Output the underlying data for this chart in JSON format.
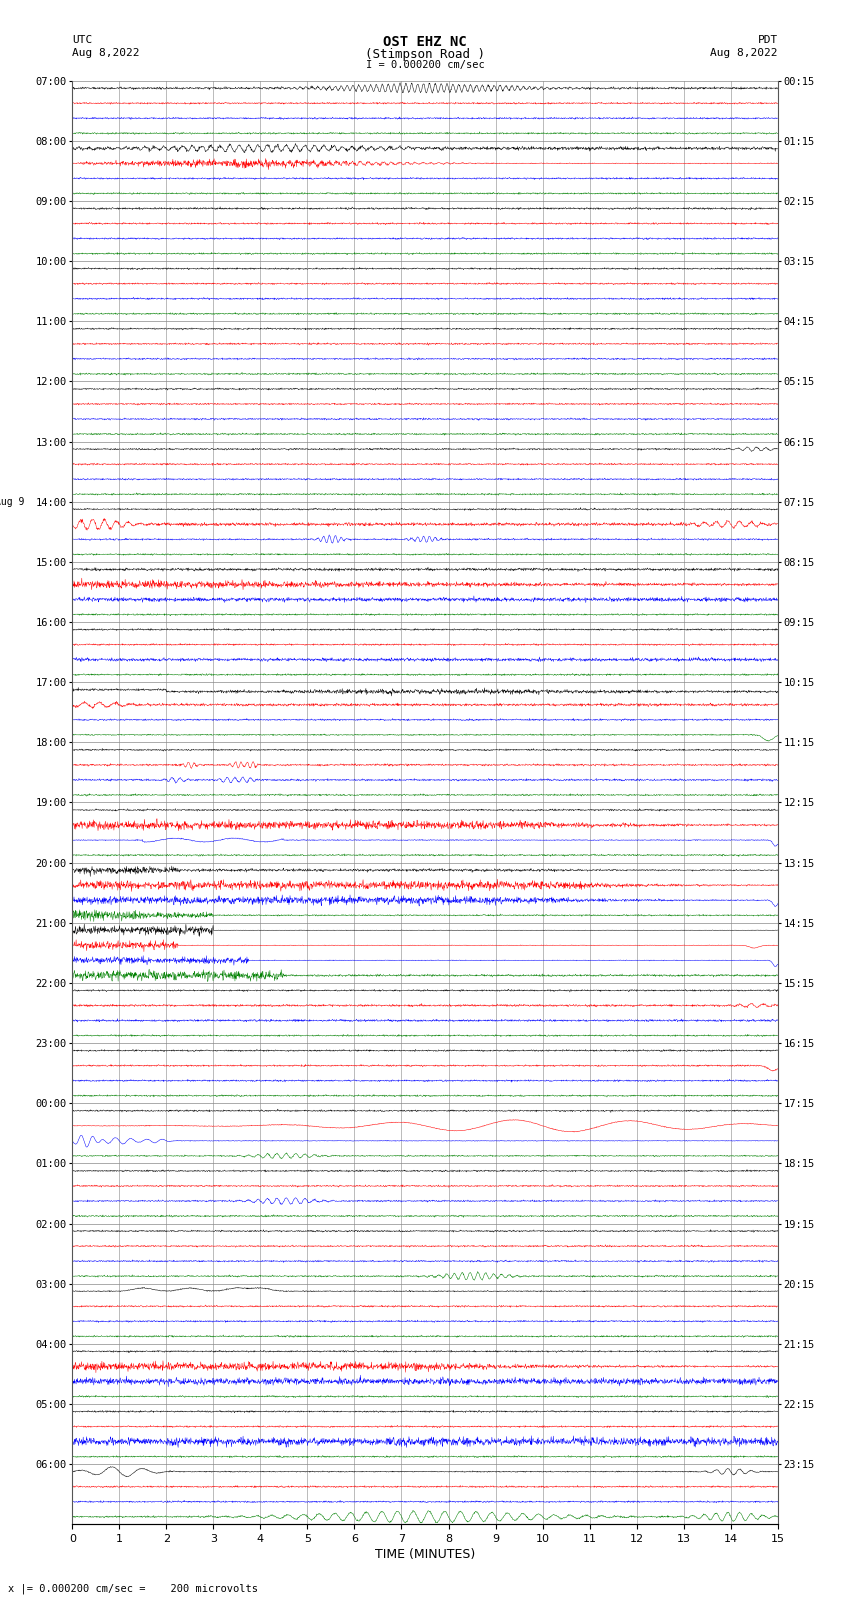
{
  "title_line1": "OST EHZ NC",
  "title_line2": "(Stimpson Road )",
  "title_line3": "I = 0.000200 cm/sec",
  "label_utc": "UTC",
  "label_date_left": "Aug 8,2022",
  "label_pdt": "PDT",
  "label_date_right": "Aug 8,2022",
  "xlabel": "TIME (MINUTES)",
  "footer": "x |= 0.000200 cm/sec =    200 microvolts",
  "colors": [
    "black",
    "red",
    "blue",
    "green"
  ],
  "background_color": "white",
  "grid_color": "#888888",
  "fig_width": 8.5,
  "fig_height": 16.13,
  "hour_labels_utc": [
    "07:00",
    "08:00",
    "09:00",
    "10:00",
    "11:00",
    "12:00",
    "13:00",
    "14:00",
    "15:00",
    "16:00",
    "17:00",
    "18:00",
    "19:00",
    "20:00",
    "21:00",
    "22:00",
    "23:00",
    "00:00",
    "01:00",
    "02:00",
    "03:00",
    "04:00",
    "05:00",
    "06:00"
  ],
  "hour_labels_pdt": [
    "00:15",
    "01:15",
    "02:15",
    "03:15",
    "04:15",
    "05:15",
    "06:15",
    "07:15",
    "08:15",
    "09:15",
    "10:15",
    "11:15",
    "12:15",
    "13:15",
    "14:15",
    "15:15",
    "16:15",
    "17:15",
    "18:15",
    "19:15",
    "20:15",
    "21:15",
    "22:15",
    "23:15"
  ]
}
